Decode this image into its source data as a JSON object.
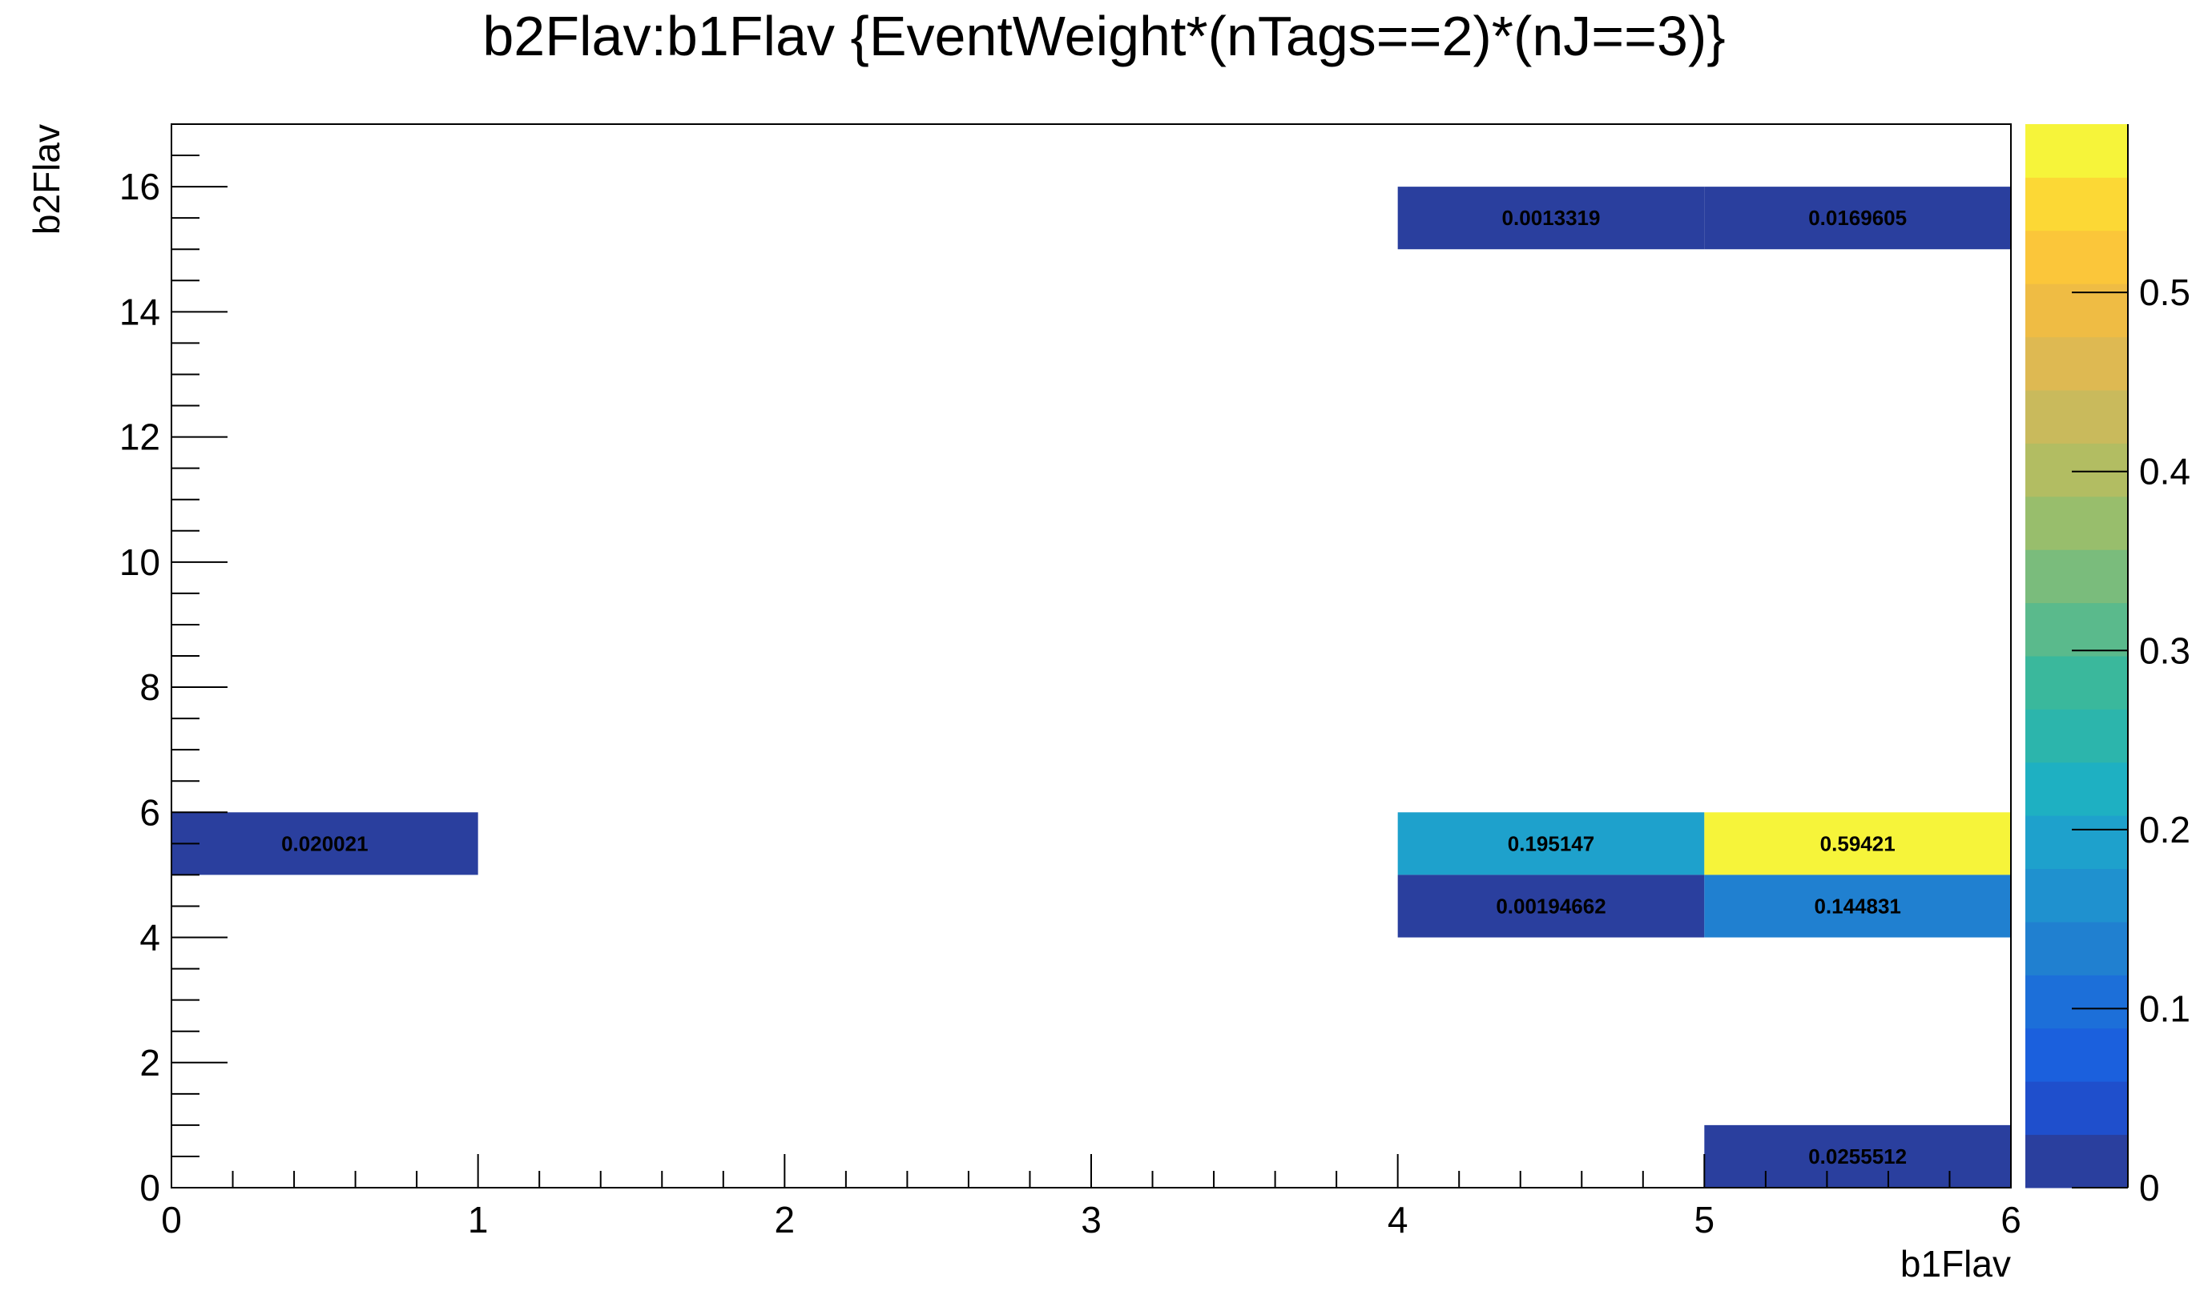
{
  "chart_data": {
    "type": "heatmap",
    "title": "b2Flav:b1Flav {EventWeight*(nTags==2)*(nJ==3)}",
    "xlabel": "b1Flav",
    "ylabel": "b2Flav",
    "xlim": [
      0,
      6
    ],
    "ylim": [
      0,
      17
    ],
    "x_ticks": [
      "0",
      "1",
      "2",
      "3",
      "4",
      "5",
      "6"
    ],
    "y_ticks": [
      "0",
      "2",
      "4",
      "6",
      "8",
      "10",
      "12",
      "14",
      "16"
    ],
    "z_ticks": [
      "0",
      "0.1",
      "0.2",
      "0.3",
      "0.4",
      "0.5"
    ],
    "zlim": [
      0,
      0.594
    ],
    "colorbar_levels": 20,
    "cells": [
      {
        "x0": 0,
        "x1": 1,
        "y0": 5,
        "y1": 6,
        "value": 0.020021,
        "label": "0.020021"
      },
      {
        "x0": 4,
        "x1": 5,
        "y0": 15,
        "y1": 16,
        "value": 0.0013319,
        "label": "0.0013319"
      },
      {
        "x0": 5,
        "x1": 6,
        "y0": 15,
        "y1": 16,
        "value": 0.0169605,
        "label": "0.0169605"
      },
      {
        "x0": 4,
        "x1": 5,
        "y0": 5,
        "y1": 6,
        "value": 0.195147,
        "label": "0.195147"
      },
      {
        "x0": 5,
        "x1": 6,
        "y0": 5,
        "y1": 6,
        "value": 0.59421,
        "label": "0.59421"
      },
      {
        "x0": 4,
        "x1": 5,
        "y0": 4,
        "y1": 5,
        "value": 0.00194662,
        "label": "0.00194662"
      },
      {
        "x0": 5,
        "x1": 6,
        "y0": 4,
        "y1": 5,
        "value": 0.144831,
        "label": "0.144831"
      },
      {
        "x0": 5,
        "x1": 6,
        "y0": 0,
        "y1": 1,
        "value": 0.0255512,
        "label": "0.0255512"
      }
    ],
    "palette": [
      "#2a3f9e",
      "#1f4fcc",
      "#1b60dd",
      "#1c6fd9",
      "#2080d0",
      "#1f91cf",
      "#1ea1cc",
      "#1eb0c2",
      "#2cb5ac",
      "#3ab89c",
      "#5aba8c",
      "#7abc7c",
      "#98be6c",
      "#b2bd62",
      "#c9ba5c",
      "#deb952",
      "#efbc44",
      "#fbc63a",
      "#fcd835",
      "#f6f43a"
    ],
    "grid": false,
    "legend": "colorbar-right"
  }
}
